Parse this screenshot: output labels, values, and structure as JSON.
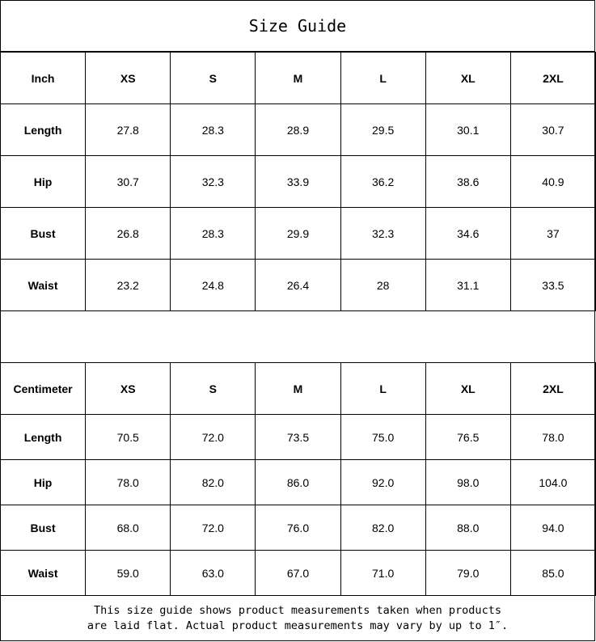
{
  "title": "Size Guide",
  "sizes": [
    "XS",
    "S",
    "M",
    "L",
    "XL",
    "2XL"
  ],
  "inch": {
    "unit_label": "Inch",
    "rows": [
      {
        "label": "Length",
        "values": [
          "27.8",
          "28.3",
          "28.9",
          "29.5",
          "30.1",
          "30.7"
        ]
      },
      {
        "label": "Hip",
        "values": [
          "30.7",
          "32.3",
          "33.9",
          "36.2",
          "38.6",
          "40.9"
        ]
      },
      {
        "label": "Bust",
        "values": [
          "26.8",
          "28.3",
          "29.9",
          "32.3",
          "34.6",
          "37"
        ]
      },
      {
        "label": "Waist",
        "values": [
          "23.2",
          "24.8",
          "26.4",
          "28",
          "31.1",
          "33.5"
        ]
      }
    ]
  },
  "centimeter": {
    "unit_label": "Centimeter",
    "rows": [
      {
        "label": "Length",
        "values": [
          "70.5",
          "72.0",
          "73.5",
          "75.0",
          "76.5",
          "78.0"
        ]
      },
      {
        "label": "Hip",
        "values": [
          "78.0",
          "82.0",
          "86.0",
          "92.0",
          "98.0",
          "104.0"
        ]
      },
      {
        "label": "Bust",
        "values": [
          "68.0",
          "72.0",
          "76.0",
          "82.0",
          "88.0",
          "94.0"
        ]
      },
      {
        "label": "Waist",
        "values": [
          "59.0",
          "63.0",
          "67.0",
          "71.0",
          "79.0",
          "85.0"
        ]
      }
    ]
  },
  "footer": {
    "line1": "This size guide shows product measurements taken when products",
    "line2": "are laid flat. Actual product measurements may vary by up to 1″."
  }
}
